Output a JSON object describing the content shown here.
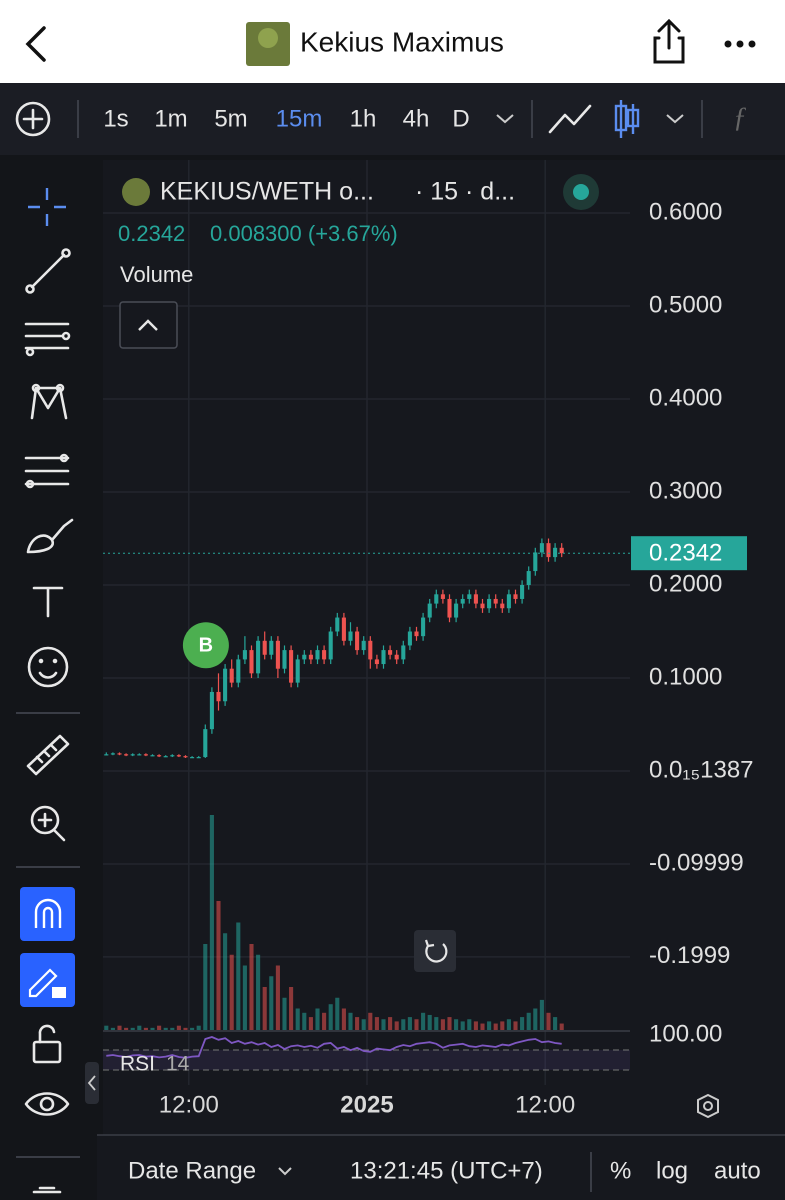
{
  "header": {
    "title": "Kekius Maximus"
  },
  "toolbar": {
    "timeframes": [
      "1s",
      "1m",
      "5m",
      "15m",
      "1h",
      "4h",
      "D"
    ],
    "active": "15m"
  },
  "legend": {
    "symbol": "KEKIUS/WETH o...",
    "interval": "· 15 · d...",
    "change": "0.008300 (+3.67%)",
    "volume": "Volume",
    "rsi": "RSI",
    "rsi_length": "14"
  },
  "marker": {
    "label": "B"
  },
  "footer": {
    "date_range": "Date Range",
    "clock": "13:21:45 (UTC+7)",
    "percent": "%",
    "log": "log",
    "auto": "auto"
  },
  "chart_data": {
    "type": "candlestick",
    "up_color": "#26a69a",
    "down_color": "#ef5350",
    "grid": true,
    "xlim": [
      0,
      70
    ],
    "xticks": [
      {
        "value": 13,
        "label": "12:00"
      },
      {
        "value": 40,
        "label": "2025"
      },
      {
        "value": 67,
        "label": "12:00"
      }
    ],
    "ylim": [
      -0.2785,
      0.657
    ],
    "yticks": [
      {
        "value": 0.6,
        "label": "0.6000"
      },
      {
        "value": 0.5,
        "label": "0.5000"
      },
      {
        "value": 0.4,
        "label": "0.4000"
      },
      {
        "value": 0.3,
        "label": "0.3000"
      },
      {
        "value": 0.2,
        "label": "0.2000"
      },
      {
        "value": 0.1,
        "label": "0.1000"
      },
      {
        "value": 1.387e-16,
        "label": "0.0₁₅1387"
      },
      {
        "value": -0.09999,
        "label": "-0.09999"
      },
      {
        "value": -0.1999,
        "label": "-0.1999"
      }
    ],
    "open": [
      0.018,
      0.018,
      0.019,
      0.018,
      0.017,
      0.018,
      0.018,
      0.017,
      0.017,
      0.016,
      0.016,
      0.017,
      0.016,
      0.015,
      0.015,
      0.015,
      0.045,
      0.085,
      0.075,
      0.11,
      0.095,
      0.12,
      0.13,
      0.105,
      0.14,
      0.125,
      0.14,
      0.11,
      0.13,
      0.095,
      0.12,
      0.125,
      0.12,
      0.13,
      0.12,
      0.15,
      0.165,
      0.14,
      0.15,
      0.13,
      0.14,
      0.12,
      0.115,
      0.13,
      0.125,
      0.12,
      0.135,
      0.15,
      0.145,
      0.165,
      0.18,
      0.19,
      0.185,
      0.165,
      0.18,
      0.185,
      0.19,
      0.18,
      0.175,
      0.185,
      0.18,
      0.175,
      0.19,
      0.185,
      0.2,
      0.215,
      0.235,
      0.245,
      0.23,
      0.24
    ],
    "high": [
      0.02,
      0.02,
      0.02,
      0.019,
      0.019,
      0.019,
      0.019,
      0.018,
      0.018,
      0.017,
      0.018,
      0.018,
      0.017,
      0.016,
      0.016,
      0.05,
      0.09,
      0.105,
      0.115,
      0.12,
      0.125,
      0.145,
      0.135,
      0.145,
      0.15,
      0.145,
      0.145,
      0.135,
      0.135,
      0.125,
      0.13,
      0.13,
      0.135,
      0.135,
      0.155,
      0.17,
      0.17,
      0.16,
      0.155,
      0.145,
      0.145,
      0.125,
      0.135,
      0.135,
      0.13,
      0.14,
      0.155,
      0.155,
      0.17,
      0.185,
      0.195,
      0.195,
      0.19,
      0.185,
      0.19,
      0.195,
      0.195,
      0.185,
      0.19,
      0.19,
      0.185,
      0.195,
      0.195,
      0.205,
      0.22,
      0.24,
      0.25,
      0.25,
      0.245,
      0.245
    ],
    "low": [
      0.017,
      0.017,
      0.017,
      0.016,
      0.016,
      0.017,
      0.016,
      0.016,
      0.015,
      0.015,
      0.015,
      0.015,
      0.014,
      0.014,
      0.014,
      0.014,
      0.04,
      0.065,
      0.07,
      0.09,
      0.09,
      0.115,
      0.1,
      0.1,
      0.12,
      0.12,
      0.1,
      0.105,
      0.09,
      0.09,
      0.115,
      0.115,
      0.115,
      0.115,
      0.115,
      0.145,
      0.135,
      0.135,
      0.125,
      0.125,
      0.11,
      0.11,
      0.11,
      0.12,
      0.115,
      0.115,
      0.13,
      0.14,
      0.14,
      0.16,
      0.175,
      0.18,
      0.16,
      0.16,
      0.175,
      0.18,
      0.175,
      0.17,
      0.17,
      0.175,
      0.17,
      0.17,
      0.18,
      0.18,
      0.195,
      0.21,
      0.23,
      0.225,
      0.225,
      0.23
    ],
    "close": [
      0.018,
      0.019,
      0.018,
      0.017,
      0.018,
      0.018,
      0.017,
      0.017,
      0.016,
      0.016,
      0.017,
      0.016,
      0.015,
      0.015,
      0.015,
      0.045,
      0.085,
      0.075,
      0.11,
      0.095,
      0.12,
      0.13,
      0.105,
      0.14,
      0.125,
      0.14,
      0.11,
      0.13,
      0.095,
      0.12,
      0.125,
      0.12,
      0.13,
      0.12,
      0.15,
      0.165,
      0.14,
      0.15,
      0.13,
      0.14,
      0.12,
      0.115,
      0.13,
      0.125,
      0.12,
      0.135,
      0.15,
      0.145,
      0.165,
      0.18,
      0.19,
      0.185,
      0.165,
      0.18,
      0.185,
      0.19,
      0.18,
      0.175,
      0.185,
      0.18,
      0.175,
      0.19,
      0.185,
      0.2,
      0.215,
      0.235,
      0.245,
      0.23,
      0.24,
      0.2342
    ],
    "volume": [
      2,
      1,
      2,
      1,
      1,
      2,
      1,
      1,
      2,
      1,
      1,
      2,
      1,
      1,
      2,
      40,
      100,
      60,
      45,
      35,
      50,
      30,
      40,
      35,
      20,
      25,
      30,
      15,
      20,
      10,
      8,
      6,
      10,
      8,
      12,
      15,
      10,
      8,
      6,
      5,
      8,
      6,
      5,
      6,
      4,
      5,
      6,
      5,
      8,
      7,
      6,
      5,
      6,
      5,
      4,
      5,
      4,
      3,
      4,
      3,
      4,
      5,
      4,
      6,
      8,
      10,
      14,
      8,
      6,
      3
    ],
    "rsi_color": "#7e57c2",
    "rsi_ylim": [
      0,
      100
    ],
    "rsi_yticks": [
      {
        "value": 100,
        "label": "100.00"
      }
    ],
    "rsi": [
      48,
      50,
      47,
      45,
      49,
      50,
      46,
      47,
      44,
      46,
      50,
      45,
      43,
      46,
      47,
      90,
      95,
      88,
      92,
      80,
      85,
      78,
      82,
      76,
      80,
      70,
      75,
      65,
      72,
      74,
      70,
      73,
      68,
      78,
      80,
      66,
      70,
      62,
      68,
      60,
      58,
      66,
      64,
      62,
      70,
      75,
      72,
      78,
      80,
      82,
      78,
      68,
      74,
      76,
      78,
      72,
      70,
      74,
      72,
      70,
      76,
      74,
      80,
      84,
      88,
      90,
      82,
      84,
      80,
      78
    ]
  }
}
